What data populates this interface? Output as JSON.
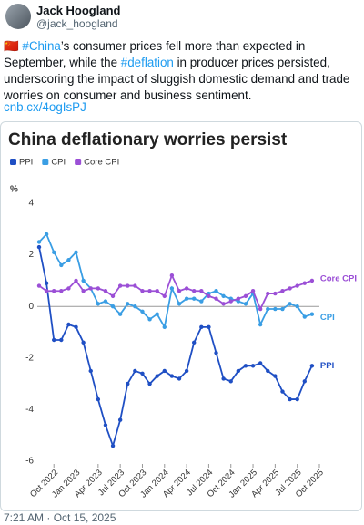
{
  "tweet": {
    "author": "Jack Hoogland",
    "handle": "@jack_hoogland",
    "text": [
      "🇨🇳 ",
      "#China",
      "’s consumer prices fell more than expected in September, while the ",
      "#deflation",
      " in producer prices persisted, underscoring the impact of sluggish domestic demand and trade worries on consumer and business sentiment."
    ],
    "link": "cnb.cx/4ogIsPJ",
    "timestamp": "7:21 AM · Oct 15, 2025"
  },
  "chart_data": {
    "type": "line",
    "title": "China deflationary worries persist",
    "y_label": "%",
    "x": [
      "2022-08",
      "2022-09",
      "2022-10",
      "2022-11",
      "2022-12",
      "2023-01",
      "2023-02",
      "2023-03",
      "2023-04",
      "2023-05",
      "2023-06",
      "2023-07",
      "2023-08",
      "2023-09",
      "2023-10",
      "2023-11",
      "2023-12",
      "2024-01",
      "2024-02",
      "2024-03",
      "2024-04",
      "2024-05",
      "2024-06",
      "2024-07",
      "2024-08",
      "2024-09",
      "2024-10",
      "2024-11",
      "2024-12",
      "2025-01",
      "2025-02",
      "2025-03",
      "2025-04",
      "2025-05",
      "2025-06",
      "2025-07",
      "2025-08",
      "2025-09"
    ],
    "series": [
      {
        "name": "PPI",
        "color": "#1f4fc4",
        "values": [
          2.3,
          0.9,
          -1.3,
          -1.3,
          -0.7,
          -0.8,
          -1.4,
          -2.5,
          -3.6,
          -4.6,
          -5.4,
          -4.4,
          -3.0,
          -2.5,
          -2.6,
          -3.0,
          -2.7,
          -2.5,
          -2.7,
          -2.8,
          -2.5,
          -1.4,
          -0.8,
          -0.8,
          -1.8,
          -2.8,
          -2.9,
          -2.5,
          -2.3,
          -2.3,
          -2.2,
          -2.5,
          -2.7,
          -3.3,
          -3.6,
          -3.6,
          -2.9,
          -2.3
        ]
      },
      {
        "name": "CPI",
        "color": "#3a9ee4",
        "values": [
          2.5,
          2.8,
          2.1,
          1.6,
          1.8,
          2.1,
          1.0,
          0.7,
          0.1,
          0.2,
          0.0,
          -0.3,
          0.1,
          0.0,
          -0.2,
          -0.5,
          -0.3,
          -0.8,
          0.7,
          0.1,
          0.3,
          0.3,
          0.2,
          0.5,
          0.6,
          0.4,
          0.3,
          0.2,
          0.1,
          0.5,
          -0.7,
          -0.1,
          -0.1,
          -0.1,
          0.1,
          0.0,
          -0.4,
          -0.3
        ]
      },
      {
        "name": "Core CPI",
        "color": "#9b4fd6",
        "values": [
          0.8,
          0.6,
          0.6,
          0.6,
          0.7,
          1.0,
          0.6,
          0.7,
          0.7,
          0.6,
          0.4,
          0.8,
          0.8,
          0.8,
          0.6,
          0.6,
          0.6,
          0.4,
          1.2,
          0.6,
          0.7,
          0.6,
          0.6,
          0.4,
          0.3,
          0.1,
          0.2,
          0.3,
          0.4,
          0.6,
          -0.1,
          0.5,
          0.5,
          0.6,
          0.7,
          0.8,
          0.9,
          1.0
        ]
      }
    ],
    "xlim": [
      "2022-08",
      "2025-10"
    ],
    "xticks": [
      {
        "value": "2022-10",
        "label": "Oct 2022"
      },
      {
        "value": "2023-01",
        "label": "Jan 2023"
      },
      {
        "value": "2023-04",
        "label": "Apr 2023"
      },
      {
        "value": "2023-07",
        "label": "Jul 2023"
      },
      {
        "value": "2023-10",
        "label": "Oct 2023"
      },
      {
        "value": "2024-01",
        "label": "Jan 2024"
      },
      {
        "value": "2024-04",
        "label": "Apr 2024"
      },
      {
        "value": "2024-07",
        "label": "Jul 2024"
      },
      {
        "value": "2024-10",
        "label": "Oct 2024"
      },
      {
        "value": "2025-01",
        "label": "Jan 2025"
      },
      {
        "value": "2025-04",
        "label": "Apr 2025"
      },
      {
        "value": "2025-07",
        "label": "Jul 2025"
      },
      {
        "value": "2025-10",
        "label": "Oct 2025"
      }
    ],
    "ylim": [
      -6,
      4
    ],
    "yticks": [
      -6,
      -4,
      -2,
      0,
      2,
      4
    ]
  }
}
